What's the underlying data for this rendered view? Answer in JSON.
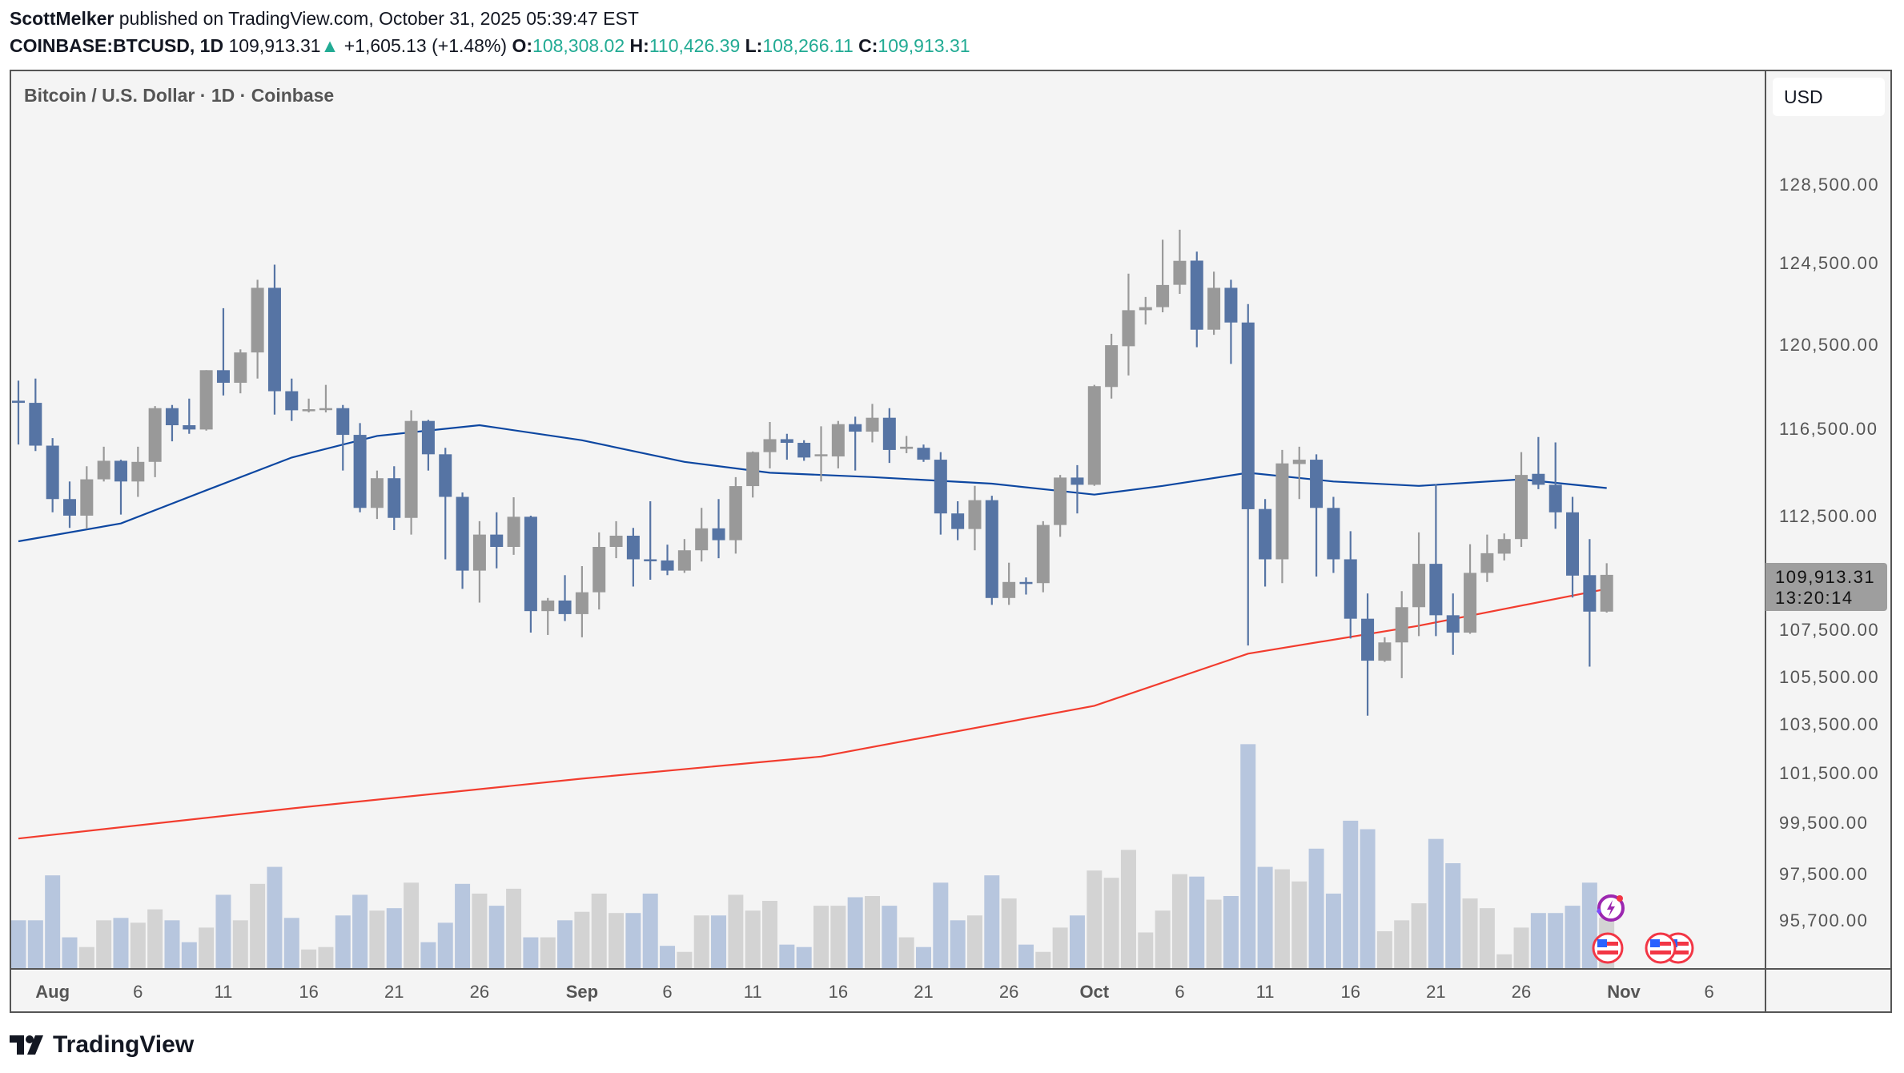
{
  "header": {
    "author": "ScottMelker",
    "published": "published on TradingView.com, October 31, 2025 05:39:47 EST",
    "symbol": "COINBASE:BTCUSD, 1D",
    "last": "109,913.31",
    "change": "+1,605.13 (+1.48%)",
    "o_label": "O:",
    "o": "108,308.02",
    "h_label": "H:",
    "h": "110,426.39",
    "l_label": "L:",
    "l": "108,266.11",
    "c_label": "C:",
    "c": "109,913.31"
  },
  "chart_title": "Bitcoin / U.S. Dollar · 1D · Coinbase",
  "currency_button": "USD",
  "price_label": {
    "price": "109,913.31",
    "countdown": "13:20:14"
  },
  "logo_text": "TradingView",
  "colors": {
    "up": "#999999",
    "down": "#5674a4",
    "vol_up": "#d3d3d3",
    "vol_down": "#b7c6de",
    "ma_blue": "#0d47a1",
    "ma_red": "#f23c2e",
    "background": "#f4f4f4"
  },
  "icons": [
    "lightning-event-icon",
    "us-flag-event-icon"
  ],
  "chart_data": {
    "type": "candlestick",
    "y_scale": "log",
    "price_ticks": [
      "128,500.00",
      "124,500.00",
      "120,500.00",
      "116,500.00",
      "112,500.00",
      "107,500.00",
      "105,500.00",
      "103,500.00",
      "101,500.00",
      "99,500.00",
      "97,500.00",
      "95,700.00"
    ],
    "price_tick_values": [
      128500,
      124500,
      120500,
      116500,
      112500,
      107500,
      105500,
      103500,
      101500,
      99500,
      97500,
      95700
    ],
    "time_ticks": [
      {
        "label": "Aug",
        "date": "2025-08-01",
        "major": true
      },
      {
        "label": "6",
        "date": "2025-08-06"
      },
      {
        "label": "11",
        "date": "2025-08-11"
      },
      {
        "label": "16",
        "date": "2025-08-16"
      },
      {
        "label": "21",
        "date": "2025-08-21"
      },
      {
        "label": "26",
        "date": "2025-08-26"
      },
      {
        "label": "Sep",
        "date": "2025-09-01",
        "major": true
      },
      {
        "label": "6",
        "date": "2025-09-06"
      },
      {
        "label": "11",
        "date": "2025-09-11"
      },
      {
        "label": "16",
        "date": "2025-09-16"
      },
      {
        "label": "21",
        "date": "2025-09-21"
      },
      {
        "label": "26",
        "date": "2025-09-26"
      },
      {
        "label": "Oct",
        "date": "2025-10-01",
        "major": true
      },
      {
        "label": "6",
        "date": "2025-10-06"
      },
      {
        "label": "11",
        "date": "2025-10-11"
      },
      {
        "label": "16",
        "date": "2025-10-16"
      },
      {
        "label": "21",
        "date": "2025-10-21"
      },
      {
        "label": "26",
        "date": "2025-10-26"
      },
      {
        "label": "Nov",
        "date": "2025-11-01",
        "major": true
      },
      {
        "label": "6",
        "date": "2025-11-06"
      }
    ],
    "candle_fields": [
      "date",
      "open",
      "high",
      "low",
      "close",
      "relative_volume"
    ],
    "candles": [
      [
        "2025-07-30",
        117850,
        118800,
        115800,
        117750,
        40
      ],
      [
        "2025-07-31",
        117750,
        118900,
        115500,
        115750,
        40
      ],
      [
        "2025-08-01",
        115750,
        116100,
        112700,
        113300,
        77
      ],
      [
        "2025-08-02",
        113300,
        114100,
        112000,
        112550,
        26
      ],
      [
        "2025-08-03",
        112550,
        114800,
        111950,
        114200,
        18
      ],
      [
        "2025-08-04",
        114200,
        115700,
        114100,
        115050,
        40
      ],
      [
        "2025-08-05",
        115050,
        115100,
        112600,
        114100,
        42
      ],
      [
        "2025-08-06",
        114100,
        115700,
        113400,
        115000,
        38
      ],
      [
        "2025-08-07",
        115000,
        117600,
        114300,
        117500,
        49
      ],
      [
        "2025-08-08",
        117500,
        117650,
        115950,
        116700,
        40
      ],
      [
        "2025-08-09",
        116700,
        117950,
        116300,
        116500,
        22
      ],
      [
        "2025-08-10",
        116500,
        119300,
        116450,
        119300,
        34
      ],
      [
        "2025-08-11",
        119300,
        122300,
        118100,
        118700,
        61
      ],
      [
        "2025-08-12",
        118700,
        120300,
        118200,
        120150,
        40
      ],
      [
        "2025-08-13",
        120150,
        123700,
        118900,
        123300,
        70
      ],
      [
        "2025-08-14",
        123300,
        124450,
        117200,
        118300,
        84
      ],
      [
        "2025-08-15",
        118300,
        118900,
        116900,
        117400,
        42
      ],
      [
        "2025-08-16",
        117400,
        117950,
        117300,
        117450,
        16
      ],
      [
        "2025-08-17",
        117450,
        118600,
        117300,
        117500,
        18
      ],
      [
        "2025-08-18",
        117500,
        117650,
        114600,
        116250,
        44
      ],
      [
        "2025-08-19",
        116250,
        116800,
        112700,
        112900,
        61
      ],
      [
        "2025-08-20",
        112900,
        114600,
        112400,
        114250,
        48
      ],
      [
        "2025-08-21",
        114250,
        114800,
        111900,
        112450,
        50
      ],
      [
        "2025-08-22",
        112450,
        117400,
        111700,
        116900,
        71
      ],
      [
        "2025-08-23",
        116900,
        116950,
        114600,
        115350,
        22
      ],
      [
        "2025-08-24",
        115350,
        115650,
        110600,
        113400,
        38
      ],
      [
        "2025-08-25",
        113400,
        113600,
        109300,
        110100,
        70
      ],
      [
        "2025-08-26",
        110100,
        112300,
        108700,
        111700,
        62
      ],
      [
        "2025-08-27",
        111700,
        112700,
        110200,
        111150,
        52
      ],
      [
        "2025-08-28",
        111150,
        113380,
        110800,
        112500,
        66
      ],
      [
        "2025-08-29",
        112500,
        112550,
        107400,
        108330,
        26
      ],
      [
        "2025-08-30",
        108330,
        108900,
        107300,
        108790,
        26
      ],
      [
        "2025-08-31",
        108790,
        109900,
        107900,
        108200,
        40
      ],
      [
        "2025-09-01",
        108200,
        110300,
        107200,
        109150,
        47
      ],
      [
        "2025-09-02",
        109150,
        111800,
        108400,
        111150,
        62
      ],
      [
        "2025-09-03",
        111150,
        112300,
        110650,
        111650,
        46
      ],
      [
        "2025-09-04",
        111650,
        112000,
        109400,
        110600,
        46
      ],
      [
        "2025-09-05",
        110600,
        113200,
        109700,
        110550,
        62
      ],
      [
        "2025-09-06",
        110550,
        111250,
        109900,
        110100,
        19
      ],
      [
        "2025-09-07",
        110100,
        111500,
        110000,
        111000,
        14
      ],
      [
        "2025-09-08",
        111000,
        112900,
        110500,
        111980,
        44
      ],
      [
        "2025-09-09",
        111980,
        113300,
        110650,
        111450,
        44
      ],
      [
        "2025-09-10",
        111450,
        114300,
        110850,
        113890,
        61
      ],
      [
        "2025-09-11",
        113890,
        115480,
        113370,
        115450,
        48
      ],
      [
        "2025-09-12",
        115450,
        116850,
        114700,
        116050,
        56
      ],
      [
        "2025-09-13",
        116050,
        116300,
        115100,
        115880,
        20
      ],
      [
        "2025-09-14",
        115880,
        116000,
        115050,
        115200,
        18
      ],
      [
        "2025-09-15",
        115300,
        116650,
        114100,
        115350,
        52
      ],
      [
        "2025-09-16",
        115250,
        116900,
        114700,
        116750,
        52
      ],
      [
        "2025-09-17",
        116750,
        117100,
        114600,
        116400,
        59
      ],
      [
        "2025-09-18",
        116400,
        117700,
        115900,
        117050,
        60
      ],
      [
        "2025-09-19",
        117050,
        117500,
        114950,
        115550,
        52
      ],
      [
        "2025-09-20",
        115600,
        116200,
        115400,
        115700,
        26
      ],
      [
        "2025-09-21",
        115650,
        115800,
        115000,
        115100,
        18
      ],
      [
        "2025-09-22",
        115100,
        115450,
        111700,
        112650,
        71
      ],
      [
        "2025-09-23",
        112650,
        113200,
        111450,
        111950,
        40
      ],
      [
        "2025-09-24",
        111950,
        113900,
        111000,
        113250,
        44
      ],
      [
        "2025-09-25",
        113250,
        113450,
        108600,
        108900,
        77
      ],
      [
        "2025-09-26",
        108900,
        110450,
        108600,
        109600,
        58
      ],
      [
        "2025-09-27",
        109600,
        109800,
        109050,
        109550,
        20
      ],
      [
        "2025-09-28",
        109550,
        112300,
        109150,
        112130,
        14
      ],
      [
        "2025-09-29",
        112130,
        114400,
        111600,
        114280,
        34
      ],
      [
        "2025-09-30",
        114280,
        114850,
        112650,
        113950,
        44
      ],
      [
        "2025-10-01",
        113950,
        118600,
        113900,
        118540,
        81
      ],
      [
        "2025-10-02",
        118500,
        121050,
        117950,
        120500,
        75
      ],
      [
        "2025-10-03",
        120450,
        124000,
        119050,
        122200,
        98
      ],
      [
        "2025-10-04",
        122200,
        122850,
        121500,
        122350,
        30
      ],
      [
        "2025-10-05",
        122350,
        125700,
        122100,
        123440,
        48
      ],
      [
        "2025-10-06",
        123450,
        126200,
        123000,
        124640,
        78
      ],
      [
        "2025-10-07",
        124650,
        125100,
        120400,
        121250,
        76
      ],
      [
        "2025-10-08",
        121250,
        124100,
        121000,
        123300,
        57
      ],
      [
        "2025-10-09",
        123300,
        123700,
        119600,
        121600,
        60
      ],
      [
        "2025-10-10",
        121600,
        122500,
        106850,
        112840,
        185
      ],
      [
        "2025-10-11",
        112850,
        113300,
        109400,
        110600,
        84
      ],
      [
        "2025-10-12",
        110600,
        115550,
        109550,
        114930,
        82
      ],
      [
        "2025-10-13",
        114900,
        115700,
        113300,
        115100,
        72
      ],
      [
        "2025-10-14",
        115100,
        115350,
        109840,
        112900,
        99
      ],
      [
        "2025-10-15",
        112900,
        113400,
        110000,
        110600,
        62
      ],
      [
        "2025-10-16",
        110600,
        111850,
        107150,
        108000,
        122
      ],
      [
        "2025-10-17",
        108000,
        109100,
        103890,
        106200,
        115
      ],
      [
        "2025-10-18",
        106200,
        107200,
        106150,
        106980,
        31
      ],
      [
        "2025-10-19",
        106980,
        109200,
        105460,
        108500,
        40
      ],
      [
        "2025-10-20",
        108500,
        111800,
        107250,
        110400,
        54
      ],
      [
        "2025-10-21",
        110400,
        113980,
        107250,
        108150,
        107
      ],
      [
        "2025-10-22",
        108150,
        109100,
        106450,
        107400,
        87
      ],
      [
        "2025-10-23",
        107400,
        111270,
        107350,
        110000,
        58
      ],
      [
        "2025-10-24",
        110000,
        111700,
        109600,
        110870,
        50
      ],
      [
        "2025-10-25",
        110850,
        111750,
        110550,
        111500,
        12
      ],
      [
        "2025-10-26",
        111500,
        115450,
        111150,
        114400,
        34
      ],
      [
        "2025-10-27",
        114450,
        116150,
        113750,
        113950,
        46
      ],
      [
        "2025-10-28",
        113950,
        115900,
        111960,
        112700,
        46
      ],
      [
        "2025-10-29",
        112700,
        113400,
        108920,
        109880,
        52
      ],
      [
        "2025-10-30",
        109900,
        111500,
        105950,
        108308.02,
        71
      ],
      [
        "2025-10-31",
        108308.02,
        110426.39,
        108266.11,
        109913.31,
        42
      ]
    ],
    "moving_averages": [
      {
        "color": "#0d47a1",
        "points": [
          [
            "2025-07-30",
            111400
          ],
          [
            "2025-08-05",
            112200
          ],
          [
            "2025-08-10",
            113700
          ],
          [
            "2025-08-15",
            115200
          ],
          [
            "2025-08-20",
            116200
          ],
          [
            "2025-08-26",
            116700
          ],
          [
            "2025-09-01",
            116000
          ],
          [
            "2025-09-07",
            115000
          ],
          [
            "2025-09-12",
            114500
          ],
          [
            "2025-09-18",
            114300
          ],
          [
            "2025-09-25",
            114000
          ],
          [
            "2025-10-01",
            113500
          ],
          [
            "2025-10-05",
            113900
          ],
          [
            "2025-10-10",
            114500
          ],
          [
            "2025-10-15",
            114100
          ],
          [
            "2025-10-20",
            113900
          ],
          [
            "2025-10-26",
            114200
          ],
          [
            "2025-10-31",
            113800
          ]
        ]
      },
      {
        "color": "#f23c2e",
        "points": [
          [
            "2025-07-30",
            98900
          ],
          [
            "2025-08-15",
            100100
          ],
          [
            "2025-09-01",
            101300
          ],
          [
            "2025-09-15",
            102200
          ],
          [
            "2025-10-01",
            104300
          ],
          [
            "2025-10-10",
            106500
          ],
          [
            "2025-10-20",
            107700
          ],
          [
            "2025-10-31",
            109300
          ]
        ]
      }
    ]
  }
}
